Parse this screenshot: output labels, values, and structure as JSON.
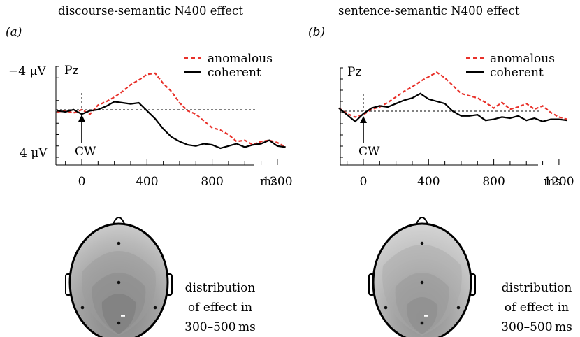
{
  "figure": {
    "panels": [
      {
        "id": "a",
        "title": "discourse-semantic N400 effect",
        "label": "(a)",
        "electrode": "Pz",
        "y_top_label": "−4 μV",
        "y_bottom_label": "4 μV",
        "onset_label": "CW",
        "x_unit": "ms",
        "legend": {
          "anomalous": "anomalous",
          "coherent": "coherent"
        },
        "distribution_caption": [
          "distribution",
          "of effect in",
          "300–500 ms"
        ]
      },
      {
        "id": "b",
        "title": "sentence-semantic N400 effect",
        "label": "(b)",
        "electrode": "Pz",
        "y_top_label": "",
        "y_bottom_label": "",
        "onset_label": "CW",
        "x_unit": "ms",
        "legend": {
          "anomalous": "anomalous",
          "coherent": "coherent"
        },
        "distribution_caption": [
          "distribution",
          "of effect in",
          "300–500 ms"
        ]
      }
    ],
    "colors": {
      "anomalous": "#e8312a",
      "coherent": "#000000",
      "scalp_outline": "#000000"
    }
  },
  "chart_data": [
    {
      "type": "line",
      "title": "discourse-semantic N400 effect",
      "x_ticks": [
        0,
        400,
        800,
        1200
      ],
      "x_unit": "ms",
      "y_ticks_labeled": [
        "−4 μV",
        "4 μV"
      ],
      "y_inverted": true,
      "xlim": [
        -150,
        1250
      ],
      "ylim": [
        -4,
        4
      ],
      "series": [
        {
          "name": "anomalous",
          "color": "#e8312a",
          "dash": true,
          "x": [
            -150,
            -100,
            -50,
            0,
            50,
            100,
            150,
            200,
            250,
            300,
            350,
            400,
            450,
            500,
            550,
            600,
            650,
            700,
            750,
            800,
            850,
            900,
            950,
            1000,
            1050,
            1100,
            1150,
            1200,
            1250
          ],
          "y": [
            0.0,
            -0.1,
            0.1,
            -0.2,
            0.2,
            -0.6,
            -0.9,
            -1.3,
            -1.8,
            -2.4,
            -2.8,
            -3.3,
            -3.4,
            -2.5,
            -1.8,
            -0.8,
            -0.1,
            0.2,
            0.8,
            1.4,
            1.6,
            2.0,
            2.6,
            2.5,
            2.9,
            2.6,
            2.5,
            2.7,
            3.1
          ]
        },
        {
          "name": "coherent",
          "color": "#000000",
          "dash": false,
          "x": [
            -150,
            -100,
            -50,
            0,
            50,
            100,
            150,
            200,
            250,
            300,
            350,
            400,
            450,
            500,
            550,
            600,
            650,
            700,
            750,
            800,
            850,
            900,
            950,
            1000,
            1050,
            1100,
            1150,
            1200,
            1250
          ],
          "y": [
            -0.1,
            0.0,
            -0.2,
            0.2,
            -0.1,
            -0.2,
            -0.5,
            -0.9,
            -0.8,
            -0.7,
            -0.8,
            -0.1,
            0.6,
            1.5,
            2.2,
            2.6,
            2.9,
            3.0,
            2.8,
            2.9,
            3.2,
            3.0,
            2.8,
            3.1,
            2.9,
            2.8,
            2.5,
            3.0,
            3.1
          ]
        }
      ]
    },
    {
      "type": "line",
      "title": "sentence-semantic N400 effect",
      "x_ticks": [
        0,
        400,
        800,
        1200
      ],
      "x_unit": "ms",
      "y_inverted": true,
      "xlim": [
        -150,
        1250
      ],
      "ylim": [
        -4,
        4
      ],
      "series": [
        {
          "name": "anomalous",
          "color": "#e8312a",
          "dash": true,
          "x": [
            -150,
            -100,
            -50,
            0,
            50,
            100,
            150,
            200,
            250,
            300,
            350,
            400,
            450,
            500,
            550,
            600,
            650,
            700,
            750,
            800,
            850,
            900,
            950,
            1000,
            1050,
            1100,
            1150,
            1200,
            1250
          ],
          "y": [
            -0.4,
            0.1,
            0.4,
            0.2,
            -0.3,
            -0.5,
            -0.9,
            -1.4,
            -1.9,
            -2.3,
            -2.8,
            -3.2,
            -3.6,
            -3.1,
            -2.4,
            -1.7,
            -1.5,
            -1.3,
            -0.9,
            -0.4,
            -0.9,
            -0.3,
            -0.5,
            -0.8,
            -0.3,
            -0.6,
            0.0,
            0.4,
            0.6
          ]
        },
        {
          "name": "coherent",
          "color": "#000000",
          "dash": false,
          "x": [
            -150,
            -100,
            -50,
            0,
            50,
            100,
            150,
            200,
            250,
            300,
            350,
            400,
            450,
            500,
            550,
            600,
            650,
            700,
            750,
            800,
            850,
            900,
            950,
            1000,
            1050,
            1100,
            1150,
            1200,
            1250
          ],
          "y": [
            -0.4,
            0.2,
            0.8,
            0.1,
            -0.4,
            -0.6,
            -0.5,
            -0.8,
            -1.1,
            -1.3,
            -1.7,
            -1.2,
            -1.0,
            -0.8,
            -0.1,
            0.3,
            0.3,
            0.2,
            0.7,
            0.6,
            0.4,
            0.5,
            0.3,
            0.7,
            0.5,
            0.8,
            0.6,
            0.6,
            0.7
          ]
        }
      ]
    }
  ]
}
